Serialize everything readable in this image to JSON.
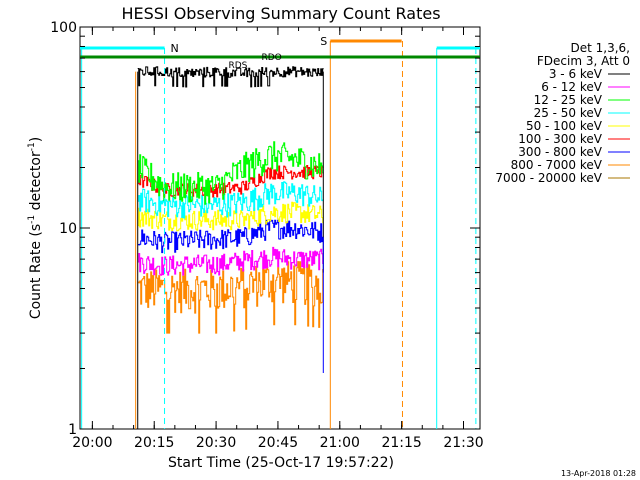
{
  "chart_data": {
    "type": "line",
    "title": "HESSI Observing Summary Count Rates",
    "xlabel": "Start Time (25-Oct-17 19:57:22)",
    "ylabel_main": "Count Rate (s",
    "ylabel_sup1": "-1",
    "ylabel_mid": " detector",
    "ylabel_sup2": "-1",
    "ylabel_end": ")",
    "yscale": "log",
    "ylim": [
      1,
      100
    ],
    "xlim_minutes_after_1957": [
      0,
      97
    ],
    "x_ticks": [
      "20:00",
      "20:15",
      "20:30",
      "20:45",
      "21:00",
      "21:15",
      "21:30"
    ],
    "y_ticks": [
      "1",
      "10",
      "100"
    ],
    "legend": {
      "header1": "Det 1,3,6,",
      "header2": "FDecim 3, Att 0",
      "position": "right",
      "entries": [
        {
          "label": "3 - 6 keV",
          "color": "#000000"
        },
        {
          "label": "6 - 12 keV",
          "color": "#ff00ff"
        },
        {
          "label": "12 - 25 keV",
          "color": "#00ff00"
        },
        {
          "label": "25 - 50 keV",
          "color": "#00ffff"
        },
        {
          "label": "50 - 100 keV",
          "color": "#ffff00"
        },
        {
          "label": "100 - 300 keV",
          "color": "#ff0000"
        },
        {
          "label": "300 - 800 keV",
          "color": "#0000ff"
        },
        {
          "label": "800 - 7000 keV",
          "color": "#ff8800"
        },
        {
          "label": "7000 - 20000 keV",
          "color": "#aa7700"
        }
      ]
    },
    "series": [
      {
        "label": "3 - 6 keV",
        "color": "#000000",
        "t_start": "20:11",
        "t_end": "20:56",
        "values": [
          60,
          60,
          59,
          60,
          59,
          60,
          60,
          59
        ]
      },
      {
        "label": "6 - 12 keV",
        "color": "#ff00ff",
        "t_start": "20:11",
        "t_end": "20:56",
        "values": [
          6.8,
          6.5,
          6.6,
          6.6,
          6.9,
          7.2,
          7.0,
          7.0
        ]
      },
      {
        "label": "12 - 25 keV",
        "color": "#00ff00",
        "t_start": "20:11",
        "t_end": "20:56",
        "values": [
          20,
          16,
          16,
          16,
          20,
          23,
          22,
          20
        ]
      },
      {
        "label": "25 - 50 keV",
        "color": "#00ffff",
        "t_start": "20:11",
        "t_end": "20:56",
        "values": [
          14,
          13,
          13,
          13,
          13.5,
          15,
          15,
          14
        ]
      },
      {
        "label": "50 - 100 keV",
        "color": "#ffff00",
        "t_start": "20:11",
        "t_end": "20:56",
        "values": [
          11.5,
          11,
          11,
          11,
          11,
          12,
          12,
          11.5
        ]
      },
      {
        "label": "100 - 300 keV",
        "color": "#ff0000",
        "t_start": "20:11",
        "t_end": "20:56",
        "values": [
          17.5,
          15.5,
          15.5,
          15.5,
          16,
          19,
          19,
          19
        ]
      },
      {
        "label": "300 - 800 keV",
        "color": "#0000ff",
        "t_start": "20:11",
        "t_end": "20:56",
        "values": [
          9,
          8.5,
          8.7,
          8.8,
          9,
          10,
          10,
          9.5
        ]
      },
      {
        "label": "800 - 7000 keV",
        "color": "#ff8800",
        "t_start": "20:11",
        "t_end": "20:56",
        "values": [
          5,
          5,
          5,
          5,
          5.2,
          5.5,
          5.5,
          5.3
        ]
      }
    ],
    "annotations": {
      "night_label": "N",
      "saa_label": "S",
      "rdo_label": "RDO",
      "rds_label": "RDS"
    }
  },
  "footer": {
    "timestamp": "13-Apr-2018 01:28"
  }
}
